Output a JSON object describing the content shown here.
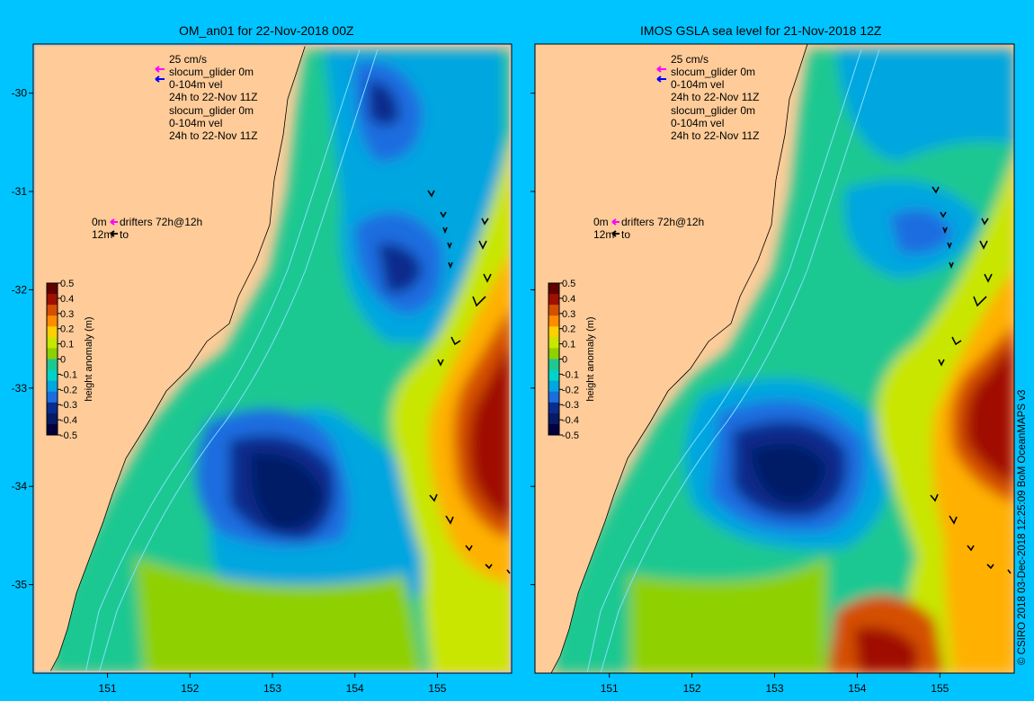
{
  "panels": [
    {
      "title": "OM_an01 for 22-Nov-2018 00Z",
      "legend_lines": [
        "25 cm/s",
        "slocum_glider 0m",
        "0-104m vel",
        "24h to 22-Nov 11Z",
        "slocum_glider 0m",
        "0-104m vel",
        "24h to 22-Nov 11Z"
      ],
      "drifter_lines": [
        "0m",
        "drifters 72h@12h",
        "12m",
        "to"
      ]
    },
    {
      "title": "IMOS GSLA sea level  for 21-Nov-2018 12Z",
      "legend_lines": [
        "25 cm/s",
        "slocum_glider 0m",
        "0-104m vel",
        "24h to 22-Nov 11Z",
        "slocum_glider 0m",
        "0-104m vel",
        "24h to 22-Nov 11Z"
      ],
      "drifter_lines": [
        "0m",
        "drifters 72h@12h",
        "12m",
        "to"
      ]
    }
  ],
  "axes": {
    "lat_ticks": [
      "-30",
      "-31",
      "-32",
      "-33",
      "-34",
      "-35"
    ],
    "lon_ticks": [
      "151",
      "152",
      "153",
      "154",
      "155"
    ],
    "lon_range": [
      150.1,
      155.9
    ],
    "lat_range": [
      -29.5,
      -35.9
    ]
  },
  "colorbar": {
    "label": "height anomaly (m)",
    "ticks": [
      "0.5",
      "0.4",
      "0.3",
      "0.2",
      "0.1",
      "0",
      "-0.1",
      "-0.2",
      "-0.3",
      "-0.4",
      "-0.5"
    ],
    "range": [
      -0.5,
      0.5
    ]
  },
  "colors": {
    "background": "#00c4ff",
    "land": "#ffcc99",
    "shelf_contour": "#7fe0ff",
    "glider_0m": "#ff00ff",
    "glider_vel": "#0000ff"
  },
  "copyright": "© CSIRO 2018   03-Dec-2018 12:25:09 BoM OceanMAPS v3"
}
